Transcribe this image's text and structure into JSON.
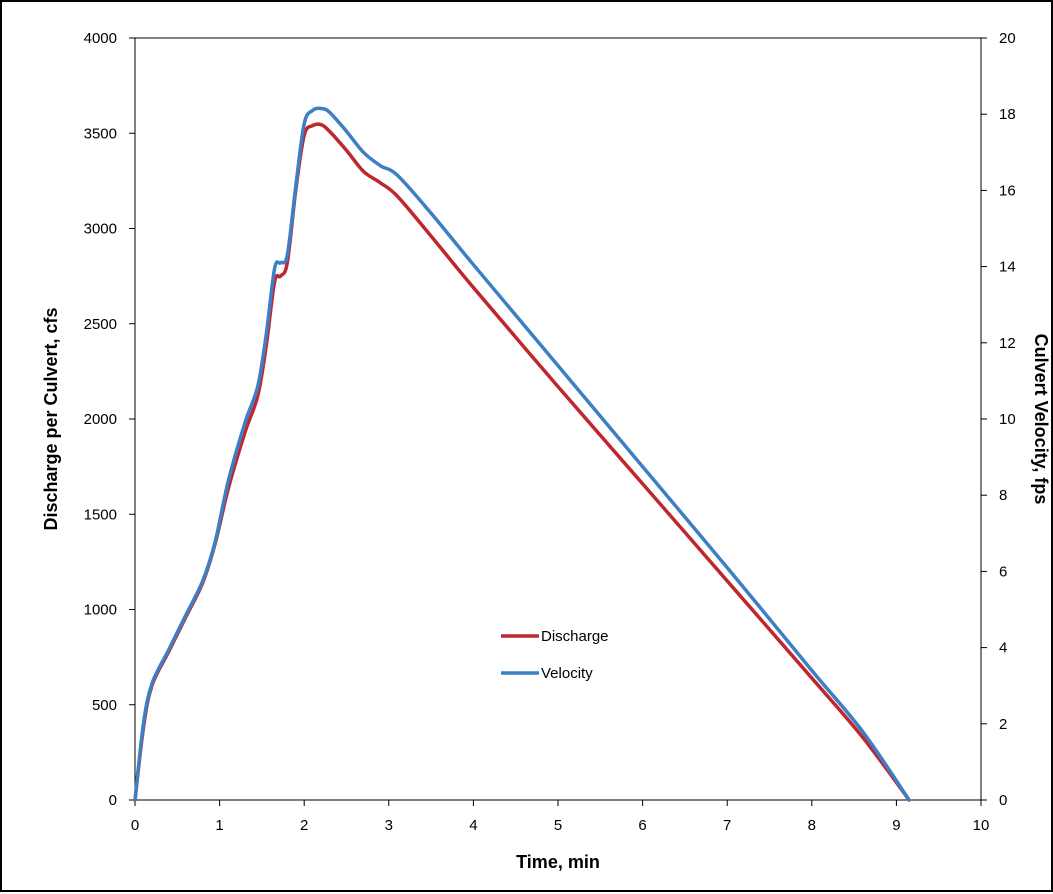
{
  "chart_data": {
    "type": "line",
    "title": "",
    "xlabel": "Time, min",
    "ylabel": "Discharge per Culvert, cfs",
    "y2label": "Culvert Velocity, fps",
    "xlim": [
      0,
      10
    ],
    "ylim": [
      0,
      4000
    ],
    "y2lim": [
      0,
      20
    ],
    "xticks": [
      0,
      1,
      2,
      3,
      4,
      5,
      6,
      7,
      8,
      9,
      10
    ],
    "yticks": [
      0,
      500,
      1000,
      1500,
      2000,
      2500,
      3000,
      3500,
      4000
    ],
    "y2ticks": [
      0,
      2,
      4,
      6,
      8,
      10,
      12,
      14,
      16,
      18,
      20
    ],
    "grid": false,
    "legend_position": "center",
    "series": [
      {
        "name": "Discharge",
        "axis": "left",
        "color": "#c0262d",
        "x": [
          0,
          0.1,
          0.2,
          0.4,
          0.6,
          0.8,
          0.95,
          1.1,
          1.3,
          1.45,
          1.55,
          1.65,
          1.72,
          1.8,
          1.9,
          2.0,
          2.1,
          2.2,
          2.3,
          2.5,
          2.7,
          2.9,
          3.1,
          3.5,
          4.0,
          5.0,
          6.0,
          7.0,
          8.0,
          8.6,
          9.15
        ],
        "values": [
          0,
          380,
          600,
          780,
          960,
          1140,
          1350,
          1630,
          1930,
          2120,
          2380,
          2720,
          2750,
          2820,
          3200,
          3490,
          3540,
          3545,
          3510,
          3410,
          3300,
          3240,
          3170,
          2960,
          2690,
          2170,
          1660,
          1150,
          640,
          330,
          0
        ]
      },
      {
        "name": "Velocity",
        "axis": "right",
        "color": "#3d7fc4",
        "x": [
          0,
          0.1,
          0.2,
          0.4,
          0.6,
          0.8,
          0.95,
          1.1,
          1.3,
          1.45,
          1.55,
          1.65,
          1.72,
          1.8,
          1.9,
          2.0,
          2.1,
          2.2,
          2.3,
          2.5,
          2.7,
          2.9,
          3.1,
          3.5,
          4.0,
          5.0,
          6.0,
          7.0,
          8.0,
          8.6,
          9.15
        ],
        "values": [
          0,
          2.0,
          3.05,
          3.95,
          4.85,
          5.75,
          6.8,
          8.35,
          9.9,
          10.85,
          12.2,
          13.95,
          14.1,
          14.3,
          16.1,
          17.75,
          18.1,
          18.15,
          18.05,
          17.55,
          17.0,
          16.65,
          16.4,
          15.4,
          14.05,
          11.4,
          8.75,
          6.1,
          3.4,
          1.8,
          0
        ]
      }
    ]
  }
}
